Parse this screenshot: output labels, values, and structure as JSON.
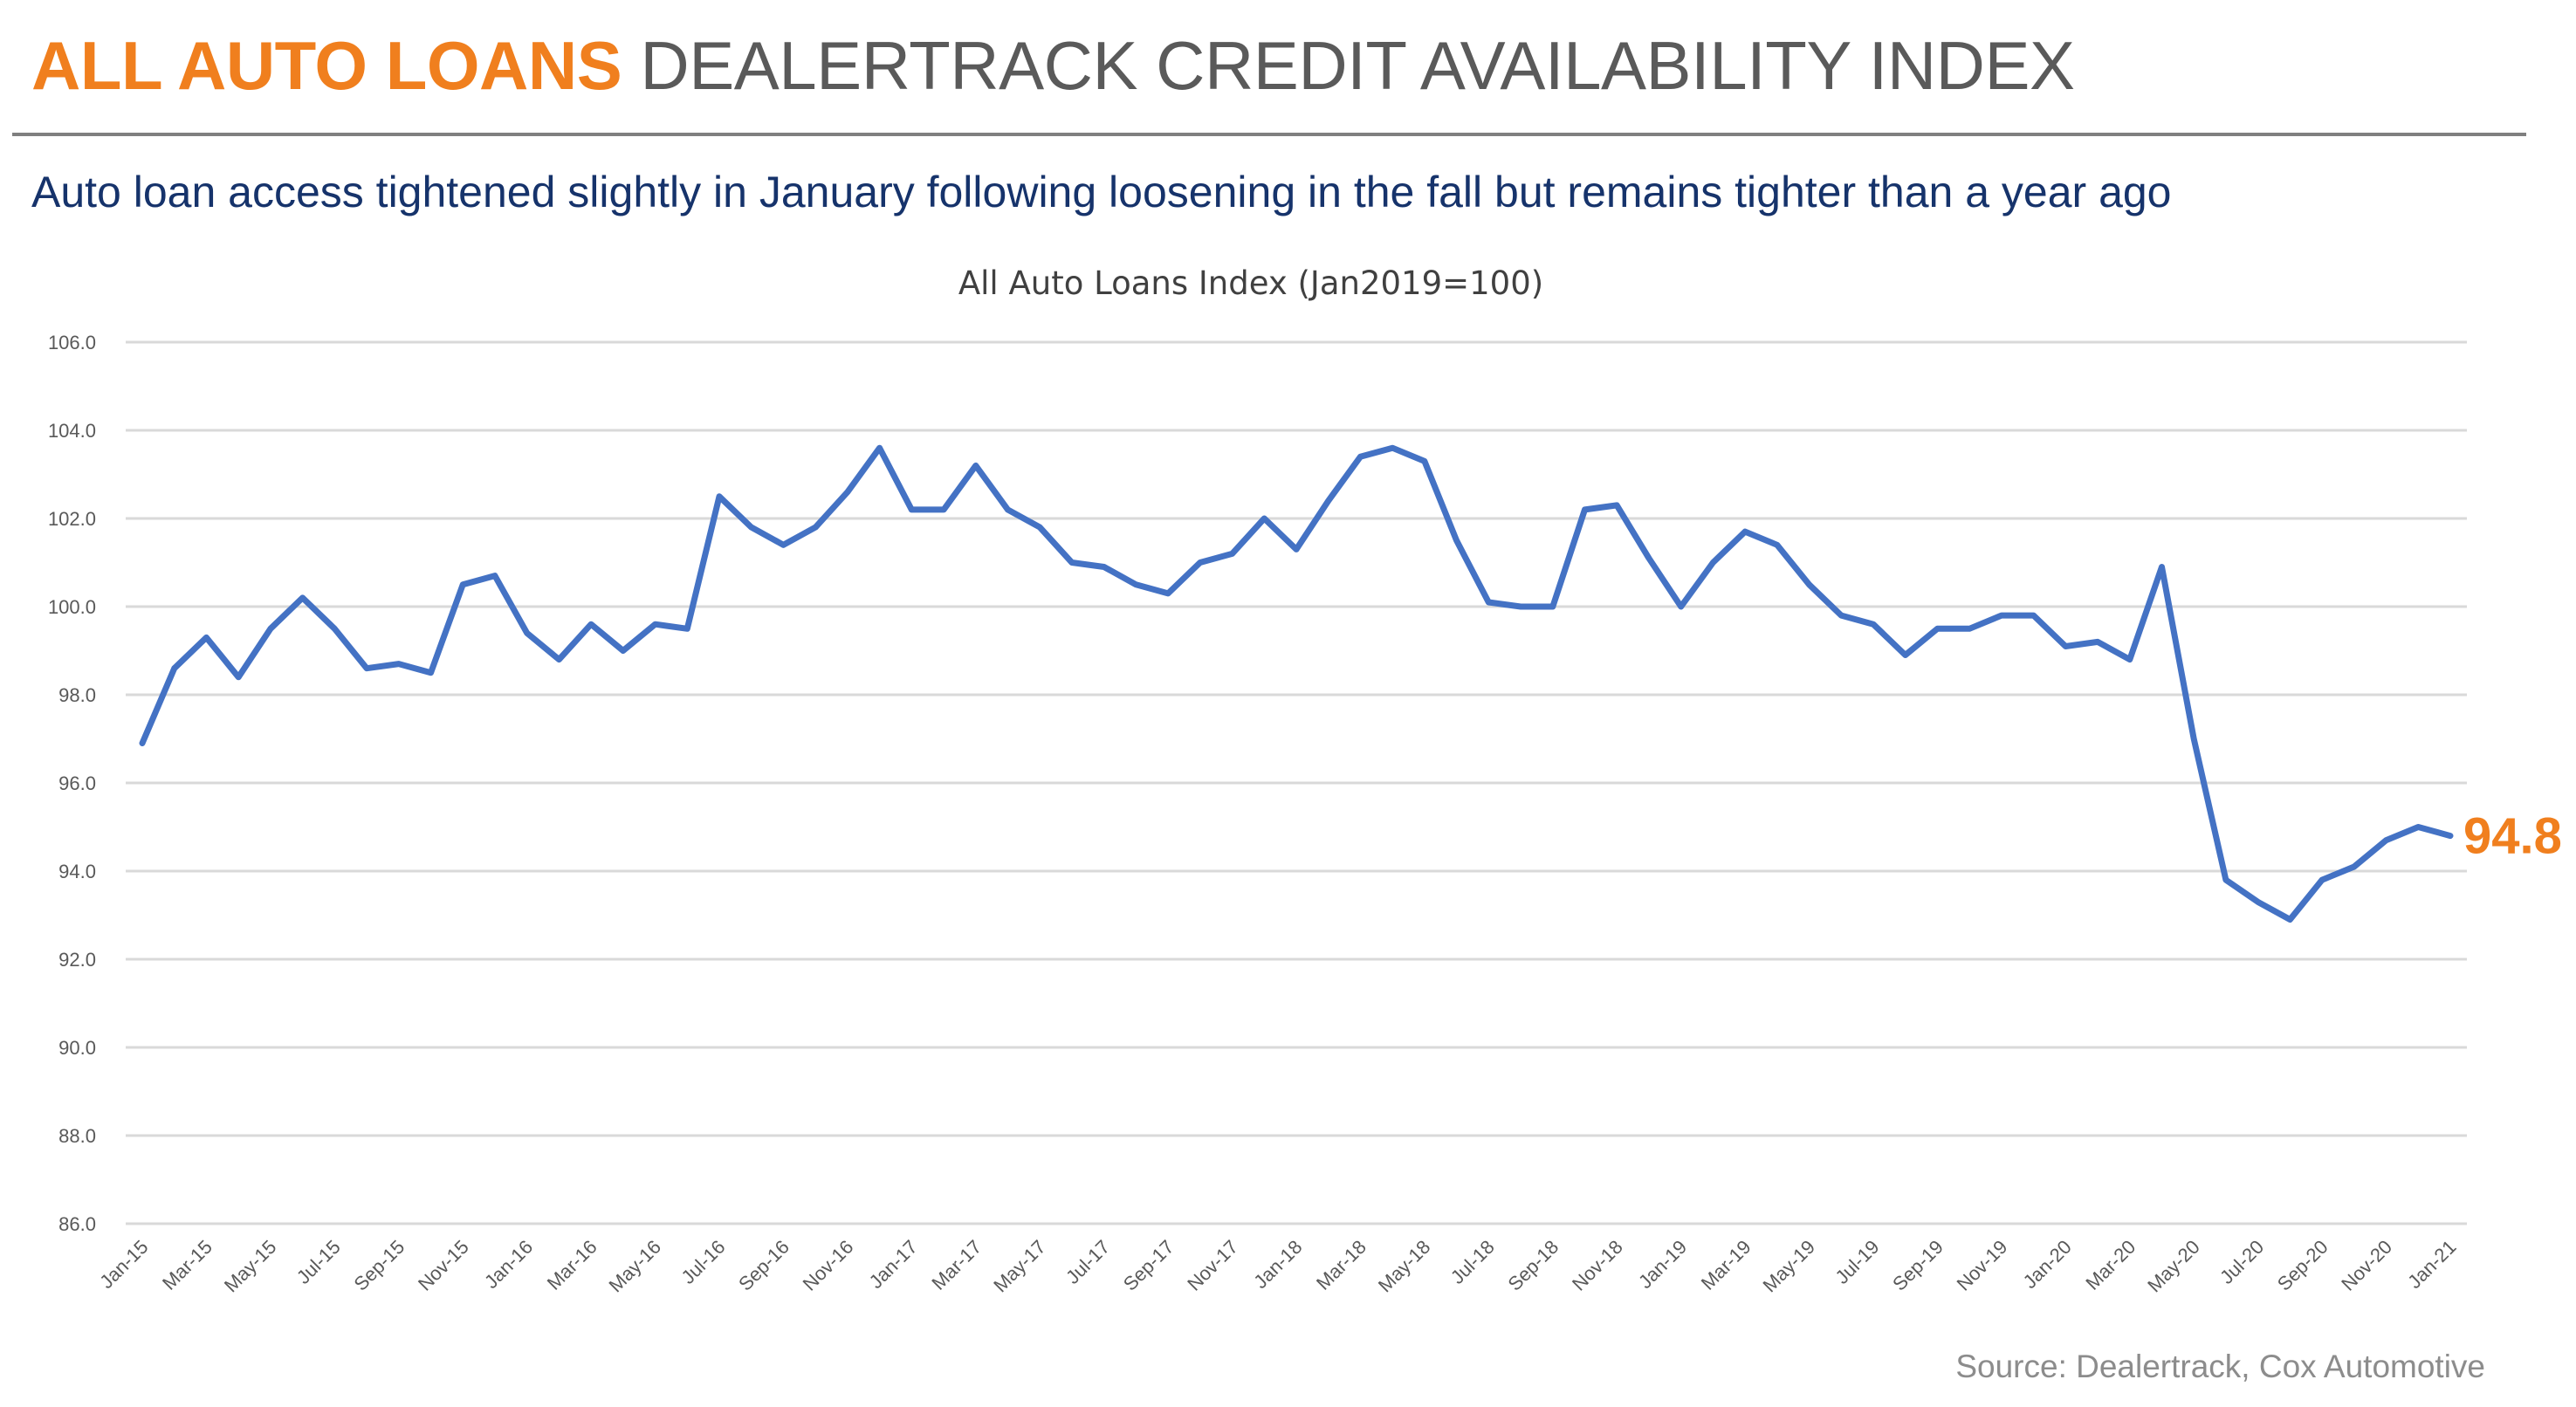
{
  "header": {
    "title_accent": "ALL AUTO LOANS",
    "title_rest": "DEALERTRACK CREDIT AVAILABILITY INDEX"
  },
  "subtitle": "Auto loan access tightened slightly in January following loosening in the fall but remains tighter than a year ago",
  "source": "Source: Dealertrack, Cox Automotive",
  "colors": {
    "accent": "#f07f1e",
    "line": "#4472c4",
    "subtitle": "#16336b",
    "grid": "#d9d9d9"
  },
  "chart_data": {
    "type": "line",
    "title": "All Auto Loans Index (Jan2019=100)",
    "xlabel": "",
    "ylabel": "",
    "ylim": [
      86.0,
      106.0
    ],
    "yticks": [
      "86.0",
      "88.0",
      "90.0",
      "92.0",
      "94.0",
      "96.0",
      "98.0",
      "100.0",
      "102.0",
      "104.0",
      "106.0"
    ],
    "grid": true,
    "legend": "none",
    "x_tick_labels": [
      "Jan-15",
      "Mar-15",
      "May-15",
      "Jul-15",
      "Sep-15",
      "Nov-15",
      "Jan-16",
      "Mar-16",
      "May-16",
      "Jul-16",
      "Sep-16",
      "Nov-16",
      "Jan-17",
      "Mar-17",
      "May-17",
      "Jul-17",
      "Sep-17",
      "Nov-17",
      "Jan-18",
      "Mar-18",
      "May-18",
      "Jul-18",
      "Sep-18",
      "Nov-18",
      "Jan-19",
      "Mar-19",
      "May-19",
      "Jul-19",
      "Sep-19",
      "Nov-19",
      "Jan-20",
      "Mar-20",
      "May-20",
      "Jul-20",
      "Sep-20",
      "Nov-20",
      "Jan-21"
    ],
    "end_label": "94.8",
    "series": [
      {
        "values": [
          96.9,
          98.6,
          99.3,
          98.4,
          99.5,
          100.2,
          99.5,
          98.6,
          98.7,
          98.5,
          100.5,
          100.7,
          99.4,
          98.8,
          99.6,
          99.0,
          99.6,
          99.5,
          102.5,
          101.8,
          101.4,
          101.8,
          102.6,
          103.6,
          102.2,
          102.2,
          103.2,
          102.2,
          101.8,
          101.0,
          100.9,
          100.5,
          100.3,
          101.0,
          101.2,
          102.0,
          101.3,
          102.4,
          103.4,
          103.6,
          103.3,
          101.5,
          100.1,
          100.0,
          100.0,
          102.2,
          102.3,
          101.1,
          100.0,
          101.0,
          101.7,
          101.4,
          100.5,
          99.8,
          99.6,
          98.9,
          99.5,
          99.5,
          99.8,
          99.8,
          99.1,
          99.2,
          98.8,
          100.9,
          97.0,
          93.8,
          93.3,
          92.9,
          93.8,
          94.1,
          94.7,
          95.0,
          94.8
        ]
      }
    ]
  }
}
